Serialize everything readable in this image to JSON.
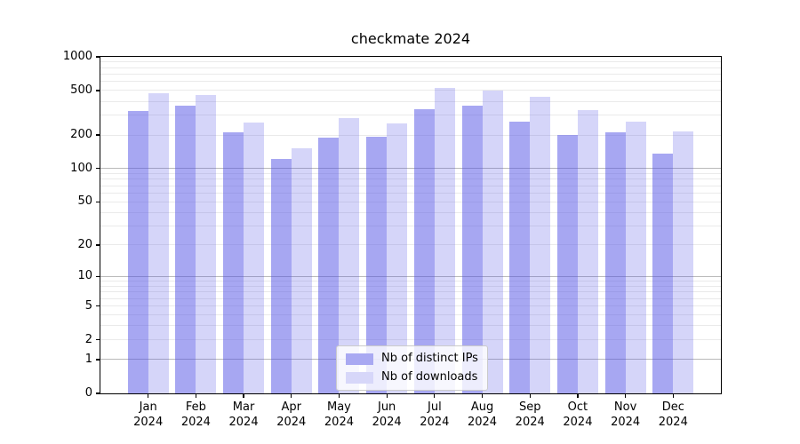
{
  "chart_data": {
    "type": "bar",
    "title": "checkmate 2024",
    "categories": [
      "Jan 2024",
      "Feb 2024",
      "Mar 2024",
      "Apr 2024",
      "May 2024",
      "Jun 2024",
      "Jul 2024",
      "Aug 2024",
      "Sep 2024",
      "Oct 2024",
      "Nov 2024",
      "Dec 2024"
    ],
    "month_labels": [
      "Jan",
      "Feb",
      "Mar",
      "Apr",
      "May",
      "Jun",
      "Jul",
      "Aug",
      "Sep",
      "Oct",
      "Nov",
      "Dec"
    ],
    "year_label": "2024",
    "series": [
      {
        "name": "Nb of distinct IPs",
        "fill": "rgba(80,80,230,0.5)",
        "legend_color": "#a9a9f2",
        "values": [
          330,
          368,
          213,
          123,
          190,
          192,
          340,
          363,
          265,
          201,
          213,
          136
        ]
      },
      {
        "name": "Nb of downloads",
        "fill": "rgba(80,80,230,0.24)",
        "legend_color": "#d7d7f9",
        "values": [
          470,
          455,
          260,
          152,
          285,
          255,
          532,
          500,
          443,
          335,
          265,
          215
        ]
      }
    ],
    "xlabel": "",
    "ylabel": "",
    "yscale": "log10(value+1)",
    "ylim": [
      0,
      1000
    ],
    "ytick_labels": [
      "1000",
      "500",
      "200",
      "100",
      "50",
      "20",
      "10",
      "5",
      "2",
      "1",
      "0"
    ],
    "ytick_values": [
      1000,
      500,
      200,
      100,
      50,
      20,
      10,
      5,
      2,
      1,
      0
    ],
    "grid": true,
    "grid_major_values": [
      1,
      10,
      100,
      1000
    ],
    "grid_minor_values": [
      2,
      3,
      4,
      5,
      6,
      7,
      8,
      9,
      20,
      30,
      40,
      50,
      60,
      70,
      80,
      90,
      200,
      300,
      400,
      500,
      600,
      700,
      800,
      900
    ],
    "legend_position": "lower center"
  },
  "colors": {
    "background": "#ffffff",
    "axis": "#000000",
    "grid_major": "#b9b9b9",
    "grid_minor": "#eaeaea",
    "bar_strong": "#a9a9f2",
    "bar_light": "#d7d7f9"
  }
}
